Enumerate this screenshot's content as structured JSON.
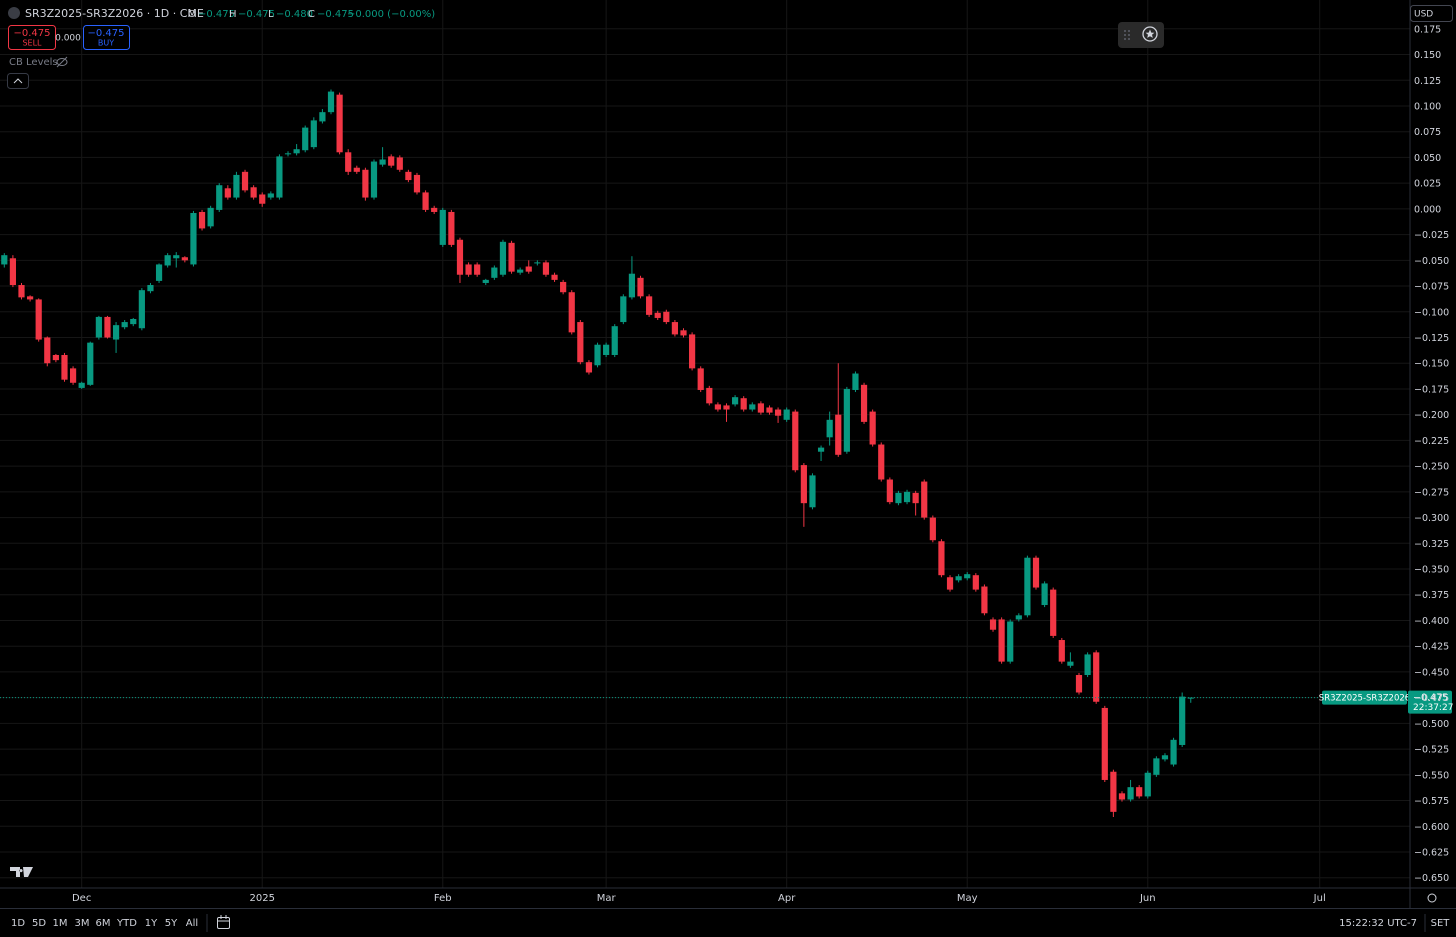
{
  "chart_data": {
    "type": "candlestick",
    "title": "SR3Z2025-SR3Z2026 · 1D · CME",
    "categories": [
      null,
      null,
      null,
      null,
      null,
      null,
      null,
      null,
      null,
      "Dec",
      null,
      null,
      null,
      null,
      null,
      null,
      null,
      null,
      null,
      null,
      null,
      null,
      null,
      null,
      null,
      null,
      null,
      null,
      null,
      null,
      "2025",
      null,
      null,
      null,
      null,
      null,
      null,
      null,
      null,
      null,
      null,
      null,
      null,
      null,
      null,
      null,
      null,
      null,
      null,
      null,
      null,
      "Feb",
      null,
      null,
      null,
      null,
      null,
      null,
      null,
      null,
      null,
      null,
      null,
      null,
      null,
      null,
      null,
      null,
      null,
      null,
      "Mar",
      null,
      null,
      null,
      null,
      null,
      null,
      null,
      null,
      null,
      null,
      null,
      null,
      null,
      null,
      null,
      null,
      null,
      null,
      null,
      null,
      "Apr",
      null,
      null,
      null,
      null,
      null,
      null,
      null,
      null,
      null,
      null,
      null,
      null,
      null,
      null,
      null,
      null,
      null,
      null,
      null,
      null,
      "May",
      null,
      null,
      null,
      null,
      null,
      null,
      null,
      null,
      null,
      null,
      null,
      null,
      null,
      null,
      null,
      null,
      null,
      null,
      null,
      null,
      "Jun",
      null,
      null,
      null,
      null,
      null,
      null,
      null,
      null,
      null,
      null,
      null,
      null,
      null,
      null,
      null,
      null,
      null,
      null,
      null,
      "Jul",
      null,
      null,
      null,
      null,
      null,
      null,
      null,
      null,
      null,
      null
    ],
    "open": [
      -0.054,
      -0.048,
      -0.074,
      -0.085,
      -0.088,
      -0.125,
      -0.142,
      -0.142,
      -0.155,
      -0.174,
      -0.171,
      -0.125,
      -0.105,
      -0.127,
      -0.115,
      -0.112,
      -0.116,
      -0.08,
      -0.07,
      -0.055,
      -0.048,
      -0.047,
      -0.054,
      -0.003,
      -0.017,
      -0.001,
      0.02,
      0.011,
      0.036,
      0.021,
      0.014,
      0.011,
      0.011,
      0.053,
      0.054,
      0.057,
      0.06,
      0.085,
      0.094,
      0.111,
      0.055,
      0.04,
      0.038,
      0.011,
      0.043,
      0.051,
      0.05,
      0.036,
      0.033,
      0.016,
      0.001,
      -0.035,
      -0.003,
      -0.03,
      -0.054,
      -0.054,
      -0.072,
      -0.067,
      -0.064,
      -0.033,
      -0.062,
      -0.056,
      -0.053,
      -0.052,
      -0.064,
      -0.071,
      -0.081,
      -0.11,
      -0.149,
      -0.152,
      -0.142,
      -0.142,
      -0.11,
      -0.086,
      -0.067,
      -0.085,
      -0.101,
      -0.1,
      -0.11,
      -0.118,
      -0.122,
      -0.155,
      -0.174,
      -0.19,
      -0.191,
      -0.19,
      -0.184,
      -0.195,
      -0.189,
      -0.193,
      -0.195,
      -0.205,
      -0.197,
      -0.249,
      -0.29,
      -0.236,
      -0.222,
      -0.2,
      -0.236,
      -0.176,
      -0.171,
      -0.197,
      -0.229,
      -0.263,
      -0.286,
      -0.285,
      -0.276,
      -0.265,
      -0.3,
      -0.323,
      -0.358,
      -0.361,
      -0.359,
      -0.356,
      -0.367,
      -0.399,
      -0.399,
      -0.44,
      -0.399,
      -0.395,
      -0.339,
      -0.385,
      -0.37,
      -0.419,
      -0.444,
      -0.453,
      -0.453,
      -0.431,
      -0.485,
      -0.547,
      -0.568,
      -0.574,
      -0.562,
      -0.571,
      -0.55,
      -0.535,
      -0.54,
      -0.521,
      -0.475,
      null,
      null,
      null,
      null,
      null,
      null,
      null,
      null,
      null,
      null,
      null,
      null,
      null,
      null,
      null,
      null,
      null,
      null,
      null,
      null,
      null,
      null,
      null,
      null,
      null
    ],
    "high": [
      -0.043,
      -0.045,
      -0.072,
      -0.084,
      -0.087,
      -0.124,
      -0.141,
      -0.14,
      -0.153,
      -0.168,
      -0.129,
      -0.104,
      -0.104,
      -0.11,
      -0.108,
      -0.106,
      -0.077,
      -0.072,
      -0.053,
      -0.043,
      -0.042,
      -0.046,
      -0.002,
      -0.001,
      0.003,
      0.025,
      0.023,
      0.036,
      0.038,
      0.023,
      0.016,
      0.017,
      0.053,
      0.056,
      0.063,
      0.081,
      0.089,
      0.097,
      0.116,
      0.113,
      0.058,
      0.042,
      0.04,
      0.048,
      0.06,
      0.053,
      0.052,
      0.038,
      0.035,
      0.018,
      0.003,
      0.001,
      -0.001,
      -0.028,
      -0.052,
      -0.052,
      -0.068,
      -0.055,
      -0.03,
      -0.031,
      -0.057,
      -0.05,
      -0.05,
      -0.05,
      -0.062,
      -0.069,
      -0.079,
      -0.108,
      -0.147,
      -0.13,
      -0.13,
      -0.112,
      -0.083,
      -0.046,
      -0.065,
      -0.083,
      -0.099,
      -0.098,
      -0.108,
      -0.116,
      -0.12,
      -0.153,
      -0.172,
      -0.188,
      -0.189,
      -0.181,
      -0.182,
      -0.188,
      -0.187,
      -0.191,
      -0.193,
      -0.193,
      -0.195,
      -0.247,
      -0.257,
      -0.23,
      -0.197,
      -0.15,
      -0.173,
      -0.158,
      -0.169,
      -0.195,
      -0.227,
      -0.261,
      -0.274,
      -0.273,
      -0.274,
      -0.263,
      -0.298,
      -0.321,
      -0.356,
      -0.355,
      -0.353,
      -0.354,
      -0.365,
      -0.397,
      -0.397,
      -0.399,
      -0.393,
      -0.337,
      -0.337,
      -0.362,
      -0.368,
      -0.417,
      -0.431,
      -0.451,
      -0.431,
      -0.429,
      -0.483,
      -0.545,
      -0.566,
      -0.555,
      -0.56,
      -0.546,
      -0.532,
      -0.529,
      -0.514,
      -0.47,
      -0.475,
      null,
      null,
      null,
      null,
      null,
      null,
      null,
      null,
      null,
      null,
      null,
      null,
      null,
      null,
      null,
      null,
      null,
      null,
      null,
      null,
      null,
      null,
      null,
      null,
      null
    ],
    "low": [
      -0.057,
      -0.076,
      -0.088,
      -0.09,
      -0.129,
      -0.153,
      -0.149,
      -0.168,
      -0.171,
      -0.175,
      -0.172,
      -0.127,
      -0.126,
      -0.14,
      -0.117,
      -0.114,
      -0.118,
      -0.082,
      -0.072,
      -0.057,
      -0.057,
      -0.052,
      -0.056,
      -0.021,
      -0.019,
      -0.003,
      0.009,
      0.009,
      0.016,
      0.009,
      0.002,
      0.009,
      0.009,
      0.051,
      0.052,
      0.055,
      0.058,
      0.083,
      0.092,
      0.053,
      0.033,
      0.034,
      0.008,
      0.009,
      0.041,
      0.04,
      0.036,
      0.026,
      0.014,
      -0.003,
      -0.005,
      -0.037,
      -0.037,
      -0.072,
      -0.066,
      -0.066,
      -0.074,
      -0.069,
      -0.066,
      -0.063,
      -0.064,
      -0.063,
      -0.055,
      -0.066,
      -0.071,
      -0.083,
      -0.122,
      -0.151,
      -0.161,
      -0.154,
      -0.144,
      -0.144,
      -0.112,
      -0.088,
      -0.087,
      -0.105,
      -0.108,
      -0.112,
      -0.124,
      -0.125,
      -0.157,
      -0.178,
      -0.191,
      -0.197,
      -0.207,
      -0.192,
      -0.197,
      -0.197,
      -0.2,
      -0.2,
      -0.208,
      -0.207,
      -0.256,
      -0.309,
      -0.292,
      -0.245,
      -0.23,
      -0.241,
      -0.238,
      -0.178,
      -0.209,
      -0.231,
      -0.265,
      -0.287,
      -0.288,
      -0.287,
      -0.298,
      -0.302,
      -0.324,
      -0.358,
      -0.372,
      -0.363,
      -0.361,
      -0.372,
      -0.395,
      -0.411,
      -0.442,
      -0.442,
      -0.401,
      -0.397,
      -0.37,
      -0.387,
      -0.417,
      -0.442,
      -0.446,
      -0.472,
      -0.455,
      -0.481,
      -0.557,
      -0.591,
      -0.576,
      -0.576,
      -0.573,
      -0.573,
      -0.552,
      -0.537,
      -0.542,
      -0.523,
      -0.48,
      null,
      null,
      null,
      null,
      null,
      null,
      null,
      null,
      null,
      null,
      null,
      null,
      null,
      null,
      null,
      null,
      null,
      null,
      null,
      null,
      null,
      null,
      null,
      null,
      null
    ],
    "close": [
      -0.045,
      -0.074,
      -0.086,
      -0.088,
      -0.127,
      -0.15,
      -0.147,
      -0.166,
      -0.169,
      -0.169,
      -0.13,
      -0.105,
      -0.125,
      -0.113,
      -0.11,
      -0.107,
      -0.079,
      -0.074,
      -0.054,
      -0.045,
      -0.045,
      -0.05,
      -0.004,
      -0.019,
      0.001,
      0.023,
      0.011,
      0.033,
      0.018,
      0.011,
      0.005,
      0.015,
      0.051,
      0.054,
      0.058,
      0.079,
      0.086,
      0.094,
      0.114,
      0.055,
      0.036,
      0.036,
      0.011,
      0.046,
      0.048,
      0.042,
      0.038,
      0.028,
      0.016,
      -0.001,
      -0.003,
      -0.001,
      -0.035,
      -0.064,
      -0.064,
      -0.064,
      -0.069,
      -0.057,
      -0.032,
      -0.061,
      -0.059,
      -0.061,
      -0.052,
      -0.064,
      -0.069,
      -0.081,
      -0.12,
      -0.149,
      -0.159,
      -0.132,
      -0.132,
      -0.114,
      -0.085,
      -0.063,
      -0.085,
      -0.103,
      -0.106,
      -0.11,
      -0.122,
      -0.123,
      -0.155,
      -0.176,
      -0.189,
      -0.195,
      -0.195,
      -0.183,
      -0.195,
      -0.19,
      -0.198,
      -0.198,
      -0.201,
      -0.195,
      -0.254,
      -0.286,
      -0.259,
      -0.232,
      -0.205,
      -0.239,
      -0.175,
      -0.16,
      -0.207,
      -0.229,
      -0.263,
      -0.285,
      -0.276,
      -0.275,
      -0.286,
      -0.3,
      -0.322,
      -0.356,
      -0.37,
      -0.357,
      -0.355,
      -0.37,
      -0.393,
      -0.409,
      -0.44,
      -0.401,
      -0.395,
      -0.339,
      -0.368,
      -0.364,
      -0.415,
      -0.44,
      -0.44,
      -0.47,
      -0.433,
      -0.479,
      -0.555,
      -0.586,
      -0.574,
      -0.562,
      -0.571,
      -0.548,
      -0.534,
      -0.531,
      -0.516,
      -0.474,
      -0.475,
      null,
      null,
      null,
      null,
      null,
      null,
      null,
      null,
      null,
      null,
      null,
      null,
      null,
      null,
      null,
      null,
      null,
      null,
      null,
      null,
      null,
      null,
      null,
      null,
      null
    ],
    "up_color": "#089981",
    "down_color": "#f23645",
    "ylim": [
      -0.66,
      0.203
    ],
    "yticks": [
      {
        "value": 0.175,
        "label": "0.175"
      },
      {
        "value": 0.15,
        "label": "0.150"
      },
      {
        "value": 0.125,
        "label": "0.125"
      },
      {
        "value": 0.1,
        "label": "0.100"
      },
      {
        "value": 0.075,
        "label": "0.075"
      },
      {
        "value": 0.05,
        "label": "0.050"
      },
      {
        "value": 0.025,
        "label": "0.025"
      },
      {
        "value": 0,
        "label": "0.000"
      },
      {
        "value": -0.025,
        "label": "−0.025"
      },
      {
        "value": -0.05,
        "label": "−0.050"
      },
      {
        "value": -0.075,
        "label": "−0.075"
      },
      {
        "value": -0.1,
        "label": "−0.100"
      },
      {
        "value": -0.125,
        "label": "−0.125"
      },
      {
        "value": -0.15,
        "label": "−0.150"
      },
      {
        "value": -0.175,
        "label": "−0.175"
      },
      {
        "value": -0.2,
        "label": "−0.200"
      },
      {
        "value": -0.225,
        "label": "−0.225"
      },
      {
        "value": -0.25,
        "label": "−0.250"
      },
      {
        "value": -0.275,
        "label": "−0.275"
      },
      {
        "value": -0.3,
        "label": "−0.300"
      },
      {
        "value": -0.325,
        "label": "−0.325"
      },
      {
        "value": -0.35,
        "label": "−0.350"
      },
      {
        "value": -0.375,
        "label": "−0.375"
      },
      {
        "value": -0.4,
        "label": "−0.400"
      },
      {
        "value": -0.425,
        "label": "−0.425"
      },
      {
        "value": -0.45,
        "label": "−0.450"
      },
      {
        "value": -0.475,
        "label": "−0.475"
      },
      {
        "value": -0.5,
        "label": "−0.500"
      },
      {
        "value": -0.525,
        "label": "−0.525"
      },
      {
        "value": -0.55,
        "label": "−0.550"
      },
      {
        "value": -0.575,
        "label": "−0.575"
      },
      {
        "value": -0.6,
        "label": "−0.600"
      },
      {
        "value": -0.625,
        "label": "−0.625"
      },
      {
        "value": -0.65,
        "label": "−0.650"
      }
    ],
    "grid": true
  },
  "ui": {
    "legend": {
      "o_label": "O",
      "o": "−0.475",
      "h_label": "H",
      "h": "−0.475",
      "l_label": "L",
      "l": "−0.480",
      "c_label": "C",
      "c": "−0.475",
      "change": "−0.000 (−0.00%)"
    },
    "trade": {
      "sell_price": "−0.475",
      "sell": "SELL",
      "spread": "0.000",
      "buy_price": "−0.475",
      "buy": "BUY"
    },
    "indicator": "CB Levels",
    "currency": "USD",
    "price_tag": {
      "symbol": "SR3Z2025-SR3Z2026",
      "price": "−0.475",
      "countdown": "22:37:27"
    },
    "timeframes": [
      "1D",
      "5D",
      "1M",
      "3M",
      "6M",
      "YTD",
      "1Y",
      "5Y",
      "All"
    ],
    "clock": "15:22:32 UTC-7",
    "session": "SET"
  }
}
